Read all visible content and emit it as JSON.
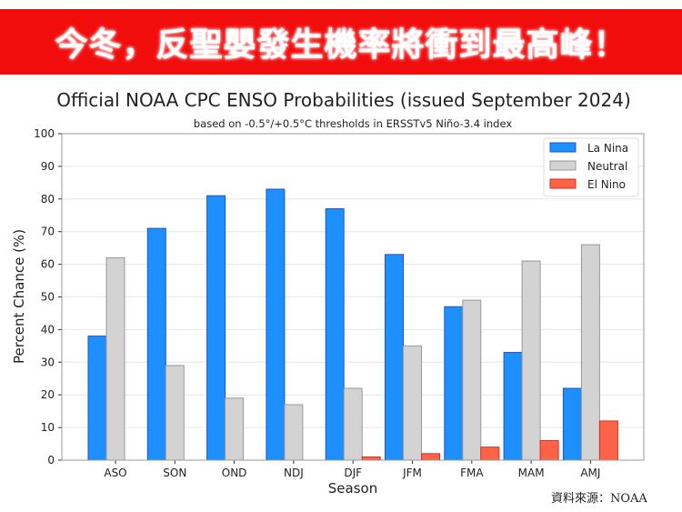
{
  "banner": {
    "text": "今冬，反聖嬰發生機率將衝到最高峰！",
    "color": "#f20d0d"
  },
  "source": "資料來源：NOAA",
  "chart_data": {
    "type": "bar",
    "title": "Official NOAA CPC ENSO Probabilities (issued September 2024)",
    "subtitle": "based on -0.5°/+0.5°C thresholds in ERSSTv5 Niño-3.4 index",
    "xlabel": "Season",
    "ylabel": "Percent Chance (%)",
    "ylim": [
      0,
      100
    ],
    "yticks": [
      0,
      10,
      20,
      30,
      40,
      50,
      60,
      70,
      80,
      90,
      100
    ],
    "grid": true,
    "legend": "top-right",
    "categories": [
      "ASO",
      "SON",
      "OND",
      "NDJ",
      "DJF",
      "JFM",
      "FMA",
      "MAM",
      "AMJ"
    ],
    "series": [
      {
        "name": "La Nina",
        "color": "#1e8fff",
        "values": [
          38,
          71,
          81,
          83,
          77,
          63,
          47,
          33,
          22
        ]
      },
      {
        "name": "Neutral",
        "color": "#d3d3d3",
        "values": [
          62,
          29,
          19,
          17,
          22,
          35,
          49,
          61,
          66
        ]
      },
      {
        "name": "El Nino",
        "color": "#ff6347",
        "values": [
          0,
          0,
          0,
          0,
          1,
          2,
          4,
          6,
          12
        ]
      }
    ]
  }
}
